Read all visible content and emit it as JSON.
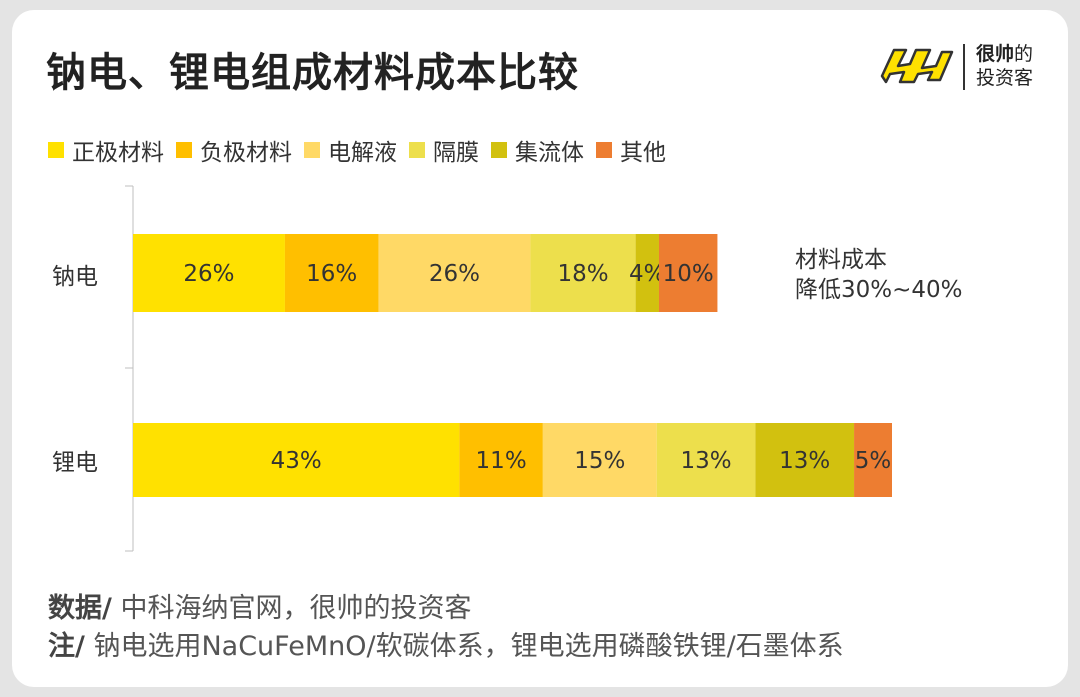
{
  "title": "钠电、锂电组成材料成本比较",
  "brand": {
    "line1_bold": "很帅",
    "line1_rest": "的",
    "line2": "投资客",
    "logo_icon": "shuai-logo-icon"
  },
  "side_note": {
    "line1": "材料成本",
    "line2": "降低30%~40%"
  },
  "footer": {
    "source_lead": "数据/",
    "source_text": " 中科海纳官网，很帅的投资客",
    "note_lead": "注/",
    "note_text": " 钠电选用NaCuFeMnO/软碳体系，锂电选用磷酸铁锂/石墨体系"
  },
  "chart_data": {
    "type": "bar",
    "orientation": "horizontal",
    "stacked": true,
    "title": "钠电、锂电组成材料成本比较",
    "categories": [
      "钠电",
      "锂电"
    ],
    "series": [
      {
        "name": "正极材料",
        "color": "#FFE100",
        "values": [
          26,
          43
        ],
        "labels": [
          "26%",
          "43%"
        ]
      },
      {
        "name": "负极材料",
        "color": "#FFBF00",
        "values": [
          16,
          11
        ],
        "labels": [
          "16%",
          "11%"
        ]
      },
      {
        "name": "电解液",
        "color": "#FFD966",
        "values": [
          26,
          15
        ],
        "labels": [
          "26%",
          "15%"
        ]
      },
      {
        "name": "隔膜",
        "color": "#EDDF4C",
        "values": [
          18,
          13
        ],
        "labels": [
          "18%",
          "13%"
        ]
      },
      {
        "name": "集流体",
        "color": "#D2C10F",
        "values": [
          4,
          13
        ],
        "labels": [
          "4%",
          "13%"
        ]
      },
      {
        "name": "其他",
        "color": "#ED7D31",
        "values": [
          10,
          5
        ],
        "labels": [
          "10%",
          "5%"
        ]
      }
    ],
    "bar_total_relative": [
      0.77,
      1.0
    ],
    "legend_position": "top-left",
    "grid": false
  }
}
